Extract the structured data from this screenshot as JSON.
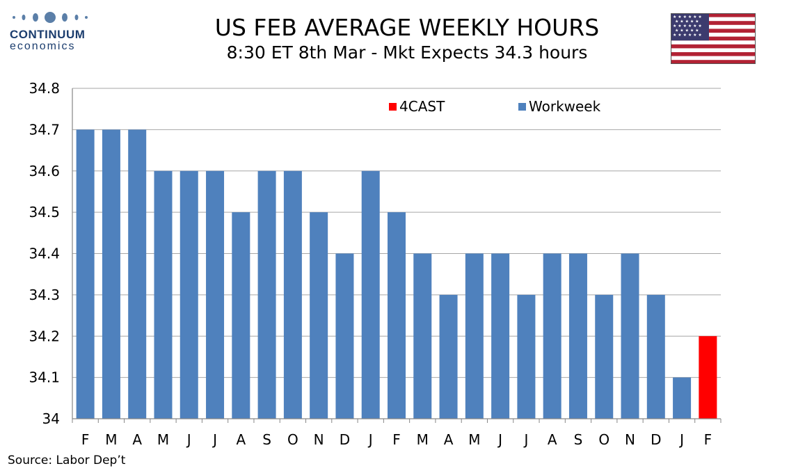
{
  "logo": {
    "name": "CONTINUUM",
    "sub": "economics"
  },
  "header": {
    "title": "US FEB AVERAGE WEEKLY HOURS",
    "subtitle": "8:30 ET 8th Mar - Mkt Expects 34.3 hours"
  },
  "source": "Source: Labor Dep’t",
  "colors": {
    "workweek": "#4f81bd",
    "forecast": "#ff0000",
    "grid": "#a6a6a6"
  },
  "chart_data": {
    "type": "bar",
    "categories": [
      "F",
      "M",
      "A",
      "M",
      "J",
      "J",
      "A",
      "S",
      "O",
      "N",
      "D",
      "J",
      "F",
      "M",
      "A",
      "M",
      "J",
      "J",
      "A",
      "S",
      "O",
      "N",
      "D",
      "J",
      "F"
    ],
    "series": [
      {
        "name": "Workweek",
        "values": [
          34.7,
          34.7,
          34.7,
          34.6,
          34.6,
          34.6,
          34.5,
          34.6,
          34.6,
          34.5,
          34.4,
          34.6,
          34.5,
          34.4,
          34.3,
          34.4,
          34.4,
          34.3,
          34.4,
          34.4,
          34.3,
          34.4,
          34.3,
          34.1,
          null
        ]
      },
      {
        "name": "4CAST",
        "values": [
          null,
          null,
          null,
          null,
          null,
          null,
          null,
          null,
          null,
          null,
          null,
          null,
          null,
          null,
          null,
          null,
          null,
          null,
          null,
          null,
          null,
          null,
          null,
          null,
          34.2
        ]
      }
    ],
    "ylim": [
      34,
      34.8
    ],
    "yticks": [
      "34",
      "34.1",
      "34.2",
      "34.3",
      "34.4",
      "34.5",
      "34.6",
      "34.7",
      "34.8"
    ],
    "ytick_values": [
      34,
      34.1,
      34.2,
      34.3,
      34.4,
      34.5,
      34.6,
      34.7,
      34.8
    ],
    "legend": [
      "4CAST",
      "Workweek"
    ],
    "legend_placement": "top-center",
    "grid": true
  }
}
